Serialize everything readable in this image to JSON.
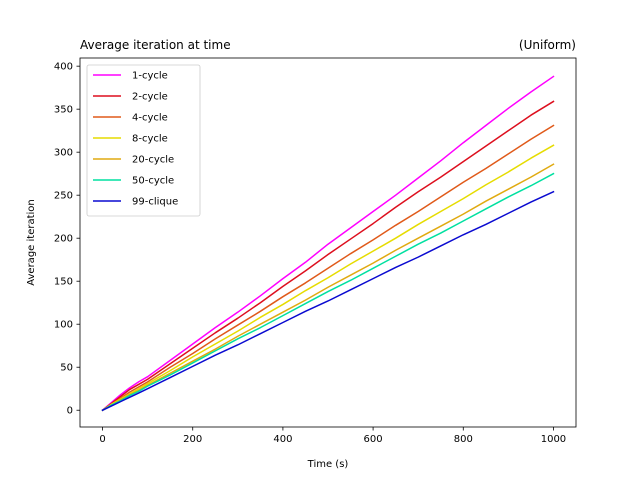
{
  "chart_data": {
    "type": "line",
    "title": "Average iteration at time",
    "title_right": "(Uniform)",
    "xlabel": "Time (s)",
    "ylabel": "Average iteration",
    "xlim": [
      -50,
      1050
    ],
    "ylim": [
      -19.5,
      409.5
    ],
    "xticks": [
      0,
      200,
      400,
      600,
      800,
      1000
    ],
    "yticks": [
      0,
      50,
      100,
      150,
      200,
      250,
      300,
      350,
      400
    ],
    "grid": false,
    "legend_position": "top-left",
    "series": [
      {
        "name": "1-cycle",
        "color": "#ff00ff",
        "x": [
          0,
          20,
          40,
          60,
          80,
          100,
          150,
          200,
          250,
          300,
          350,
          400,
          450,
          500,
          550,
          600,
          650,
          700,
          750,
          800,
          850,
          900,
          950,
          1000
        ],
        "y": [
          0,
          9,
          18,
          26,
          33,
          39,
          58,
          77,
          96,
          114,
          133,
          153,
          172,
          193,
          212,
          231,
          250,
          270,
          290,
          311,
          331,
          351,
          370,
          388
        ]
      },
      {
        "name": "2-cycle",
        "color": "#dd0f1e",
        "x": [
          0,
          20,
          40,
          60,
          80,
          100,
          150,
          200,
          250,
          300,
          350,
          400,
          450,
          500,
          550,
          600,
          650,
          700,
          750,
          800,
          850,
          900,
          950,
          1000
        ],
        "y": [
          0,
          8,
          16,
          24,
          30,
          36,
          54,
          72,
          90,
          107,
          125,
          144,
          162,
          181,
          199,
          217,
          236,
          254,
          271,
          289,
          307,
          325,
          343,
          359
        ]
      },
      {
        "name": "4-cycle",
        "color": "#e05a1a",
        "x": [
          0,
          20,
          40,
          60,
          80,
          100,
          150,
          200,
          250,
          300,
          350,
          400,
          450,
          500,
          550,
          600,
          650,
          700,
          750,
          800,
          850,
          900,
          950,
          1000
        ],
        "y": [
          0,
          7,
          14,
          21,
          27,
          33,
          50,
          66,
          83,
          99,
          115,
          132,
          148,
          165,
          182,
          198,
          215,
          231,
          248,
          265,
          281,
          298,
          315,
          331
        ]
      },
      {
        "name": "8-cycle",
        "color": "#e6dc00",
        "x": [
          0,
          20,
          40,
          60,
          80,
          100,
          150,
          200,
          250,
          300,
          350,
          400,
          450,
          500,
          550,
          600,
          650,
          700,
          750,
          800,
          850,
          900,
          950,
          1000
        ],
        "y": [
          0,
          7,
          13,
          19,
          25,
          31,
          46,
          62,
          77,
          92,
          108,
          123,
          139,
          154,
          170,
          185,
          200,
          216,
          231,
          246,
          262,
          277,
          293,
          308
        ]
      },
      {
        "name": "20-cycle",
        "color": "#e0aa10",
        "x": [
          0,
          20,
          40,
          60,
          80,
          100,
          150,
          200,
          250,
          300,
          350,
          400,
          450,
          500,
          550,
          600,
          650,
          700,
          750,
          800,
          850,
          900,
          950,
          1000
        ],
        "y": [
          0,
          6,
          12,
          18,
          23,
          29,
          43,
          57,
          71,
          86,
          100,
          114,
          128,
          143,
          157,
          171,
          186,
          200,
          214,
          228,
          243,
          257,
          271,
          286
        ]
      },
      {
        "name": "50-cycle",
        "color": "#00e0a0",
        "x": [
          0,
          20,
          40,
          60,
          80,
          100,
          150,
          200,
          250,
          300,
          350,
          400,
          450,
          500,
          550,
          600,
          650,
          700,
          750,
          800,
          850,
          900,
          950,
          1000
        ],
        "y": [
          0,
          6,
          11,
          17,
          22,
          28,
          41,
          55,
          69,
          83,
          96,
          110,
          124,
          138,
          151,
          165,
          179,
          193,
          206,
          220,
          234,
          248,
          261,
          275
        ]
      },
      {
        "name": "99-clique",
        "color": "#0a0ad0",
        "x": [
          0,
          20,
          40,
          60,
          80,
          100,
          150,
          200,
          250,
          300,
          350,
          400,
          450,
          500,
          550,
          600,
          650,
          700,
          750,
          800,
          850,
          900,
          950,
          1000
        ],
        "y": [
          0,
          5,
          10,
          15,
          20,
          25,
          38,
          51,
          64,
          76,
          89,
          102,
          115,
          127,
          140,
          153,
          166,
          178,
          191,
          204,
          216,
          229,
          242,
          254
        ]
      }
    ]
  }
}
